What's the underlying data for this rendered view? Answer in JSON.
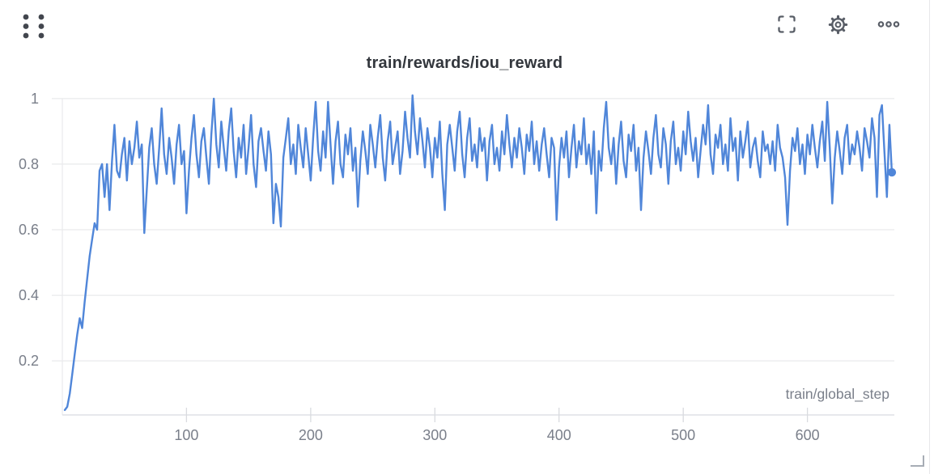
{
  "panel": {
    "title": "train/rewards/iou_reward",
    "icons": {
      "drag_handle": "grip-dots",
      "fullscreen": "corner-brackets",
      "settings": "gear",
      "more_options": "ellipsis",
      "resize": "corner-resize"
    },
    "colors": {
      "line": "#5086d9",
      "title_text": "#33373d",
      "tick_text": "#7a7f8a",
      "gridline": "#e9eaec",
      "axis_line": "#dfe1e5",
      "icon": "#585d66"
    }
  },
  "chart_data": {
    "type": "line",
    "title": "train/rewards/iou_reward",
    "xlabel": "train/global_step",
    "ylabel": "",
    "xlim": [
      0,
      670
    ],
    "ylim": [
      0.035,
      1.017
    ],
    "x_ticks": [
      100,
      200,
      300,
      400,
      500,
      600
    ],
    "y_ticks": [
      1,
      0.8,
      0.6,
      0.4,
      0.2
    ],
    "y_tick_labels": [
      "1",
      "0.8",
      "0.6",
      "0.4",
      "0.2"
    ],
    "grid": "horizontal-only",
    "legend": "none",
    "series": [
      {
        "name": "train/rewards/iou_reward",
        "color": "#5086d9",
        "x_start": 2,
        "x_step": 2,
        "endpoint_dot": true,
        "values": [
          0.05,
          0.06,
          0.1,
          0.16,
          0.22,
          0.28,
          0.33,
          0.3,
          0.38,
          0.45,
          0.52,
          0.57,
          0.62,
          0.6,
          0.78,
          0.8,
          0.7,
          0.8,
          0.66,
          0.81,
          0.92,
          0.78,
          0.76,
          0.83,
          0.88,
          0.75,
          0.87,
          0.8,
          0.85,
          0.93,
          0.82,
          0.86,
          0.59,
          0.72,
          0.85,
          0.91,
          0.8,
          0.74,
          0.85,
          0.97,
          0.83,
          0.77,
          0.88,
          0.82,
          0.74,
          0.86,
          0.92,
          0.8,
          0.84,
          0.65,
          0.78,
          0.88,
          0.95,
          0.83,
          0.76,
          0.87,
          0.91,
          0.82,
          0.74,
          0.89,
          1.0,
          0.86,
          0.79,
          0.93,
          0.85,
          0.78,
          0.9,
          0.97,
          0.84,
          0.76,
          0.88,
          0.82,
          0.92,
          0.77,
          0.85,
          0.95,
          0.8,
          0.73,
          0.87,
          0.91,
          0.84,
          0.78,
          0.9,
          0.83,
          0.62,
          0.74,
          0.7,
          0.61,
          0.82,
          0.88,
          0.94,
          0.8,
          0.86,
          0.77,
          0.92,
          0.85,
          0.79,
          0.91,
          0.83,
          0.75,
          0.88,
          0.99,
          0.84,
          0.78,
          0.9,
          0.82,
          0.99,
          0.86,
          0.74,
          0.87,
          0.93,
          0.8,
          0.76,
          0.89,
          0.83,
          0.91,
          0.78,
          0.85,
          0.67,
          0.81,
          0.9,
          0.84,
          0.77,
          0.92,
          0.86,
          0.79,
          0.88,
          0.95,
          0.82,
          0.75,
          0.87,
          0.93,
          0.8,
          0.85,
          0.9,
          0.77,
          0.84,
          0.96,
          0.88,
          0.82,
          1.01,
          0.9,
          0.83,
          0.94,
          0.87,
          0.79,
          0.91,
          0.85,
          0.76,
          0.88,
          0.82,
          0.93,
          0.77,
          0.66,
          0.86,
          0.92,
          0.85,
          0.78,
          0.9,
          0.96,
          0.83,
          0.76,
          0.88,
          0.94,
          0.81,
          0.86,
          0.79,
          0.91,
          0.84,
          0.88,
          0.75,
          0.87,
          0.92,
          0.8,
          0.85,
          0.78,
          0.9,
          0.83,
          0.95,
          0.86,
          0.79,
          0.88,
          0.82,
          0.91,
          0.85,
          0.77,
          0.89,
          0.84,
          0.93,
          0.8,
          0.87,
          0.78,
          0.86,
          0.91,
          0.83,
          0.76,
          0.88,
          0.85,
          0.63,
          0.79,
          0.88,
          0.82,
          0.9,
          0.76,
          0.85,
          0.92,
          0.79,
          0.87,
          0.83,
          0.94,
          0.8,
          0.86,
          0.77,
          0.9,
          0.65,
          0.84,
          0.78,
          0.91,
          0.99,
          0.85,
          0.8,
          0.88,
          0.74,
          0.86,
          0.93,
          0.81,
          0.76,
          0.89,
          0.84,
          0.92,
          0.78,
          0.85,
          0.66,
          0.82,
          0.9,
          0.84,
          0.77,
          0.88,
          0.95,
          0.83,
          0.79,
          0.91,
          0.86,
          0.74,
          0.87,
          0.93,
          0.8,
          0.85,
          0.78,
          0.9,
          0.83,
          0.96,
          0.87,
          0.81,
          0.88,
          0.76,
          0.84,
          0.92,
          0.86,
          0.98,
          0.83,
          0.77,
          0.89,
          0.85,
          0.92,
          0.8,
          0.86,
          0.78,
          0.94,
          0.84,
          0.88,
          0.75,
          0.9,
          0.82,
          0.87,
          0.93,
          0.79,
          0.85,
          0.88,
          0.81,
          0.76,
          0.9,
          0.84,
          0.86,
          0.8,
          0.87,
          0.78,
          0.92,
          0.85,
          0.82,
          0.76,
          0.615,
          0.78,
          0.88,
          0.84,
          0.91,
          0.8,
          0.86,
          0.77,
          0.89,
          0.83,
          0.92,
          0.85,
          0.79,
          0.87,
          0.93,
          0.81,
          0.99,
          0.85,
          0.68,
          0.82,
          0.9,
          0.84,
          0.77,
          0.88,
          0.92,
          0.8,
          0.86,
          0.83,
          0.9,
          0.85,
          0.78,
          0.91,
          0.87,
          0.82,
          0.94,
          0.88,
          0.7,
          0.95,
          0.98,
          0.84,
          0.7,
          0.92,
          0.775
        ]
      }
    ]
  }
}
